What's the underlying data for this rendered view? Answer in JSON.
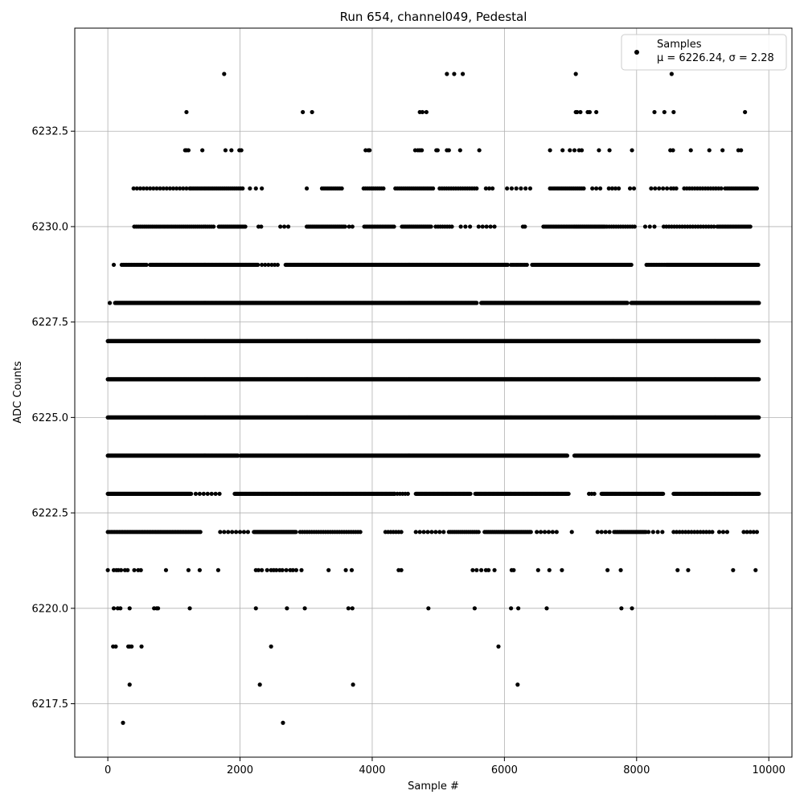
{
  "chart_data": {
    "type": "scatter",
    "title": "Run 654, channel049, Pedestal",
    "xlabel": "Sample #",
    "ylabel": "ADC Counts",
    "xlim": [
      -500,
      10350
    ],
    "ylim": [
      6216.1,
      6235.2
    ],
    "x_ticks": [
      0,
      2000,
      4000,
      6000,
      8000,
      10000
    ],
    "x_tick_labels": [
      "0",
      "2000",
      "4000",
      "6000",
      "8000",
      "10000"
    ],
    "y_ticks": [
      6217.5,
      6220.0,
      6222.5,
      6225.0,
      6227.5,
      6230.0,
      6232.5
    ],
    "y_tick_labels": [
      "6217.5",
      "6220.0",
      "6222.5",
      "6225.0",
      "6227.5",
      "6230.0",
      "6232.5"
    ],
    "grid": true,
    "legend_position": "top-right",
    "marker_color": "#000000",
    "series": [
      {
        "name": "Samples",
        "annotation": "μ = 6226.24, σ = 2.28",
        "count": 9850,
        "mean": 6226.24,
        "std": 2.28,
        "levels": [
          {
            "y": 6234,
            "x": [
              1760,
              5130,
              5240,
              5370,
              7080,
              8530
            ]
          },
          {
            "y": 6233,
            "x": [
              1190,
              2950,
              3090,
              4720,
              4760,
              4820,
              7080,
              7100,
              7150,
              7260,
              7290,
              7390,
              8270,
              8420,
              8560,
              9640
            ]
          },
          {
            "y": 6232,
            "x": [
              1170,
              1190,
              1220,
              1430,
              1780,
              1870,
              1990,
              2020,
              3900,
              3940,
              3960,
              4650,
              4690,
              4720,
              4750,
              4970,
              4990,
              5130,
              5160,
              5330,
              5620,
              6690,
              6880,
              6990,
              7060,
              7130,
              7170,
              7430,
              7590,
              7930,
              8510,
              8550,
              8820,
              9100,
              9300,
              9540,
              9580
            ]
          },
          {
            "y": 6231,
            "segments": [
              [
                390,
                1250,
                50
              ],
              [
                1260,
                2060,
                30
              ],
              [
                2150,
                2330,
                90
              ],
              [
                3010,
                3010,
                1
              ],
              [
                3240,
                3540,
                30
              ],
              [
                3870,
                4170,
                30
              ],
              [
                4350,
                4920,
                30
              ],
              [
                5020,
                5580,
                35
              ],
              [
                5720,
                5820,
                50
              ],
              [
                6040,
                6440,
                70
              ],
              [
                6690,
                7220,
                30
              ],
              [
                7330,
                7460,
                60
              ],
              [
                7580,
                7730,
                50
              ],
              [
                7900,
                7960,
                60
              ],
              [
                8220,
                8500,
                60
              ],
              [
                8520,
                8600,
                40
              ],
              [
                8720,
                9280,
                40
              ],
              [
                9340,
                9820,
                30
              ]
            ]
          },
          {
            "y": 6230,
            "segments": [
              [
                400,
                1620,
                30
              ],
              [
                1680,
                2080,
                20
              ],
              [
                2280,
                2350,
                40
              ],
              [
                2610,
                2780,
                60
              ],
              [
                3010,
                3600,
                20
              ],
              [
                3650,
                3740,
                50
              ],
              [
                3880,
                4350,
                25
              ],
              [
                4450,
                4900,
                20
              ],
              [
                4960,
                5230,
                35
              ],
              [
                5340,
                5530,
                70
              ],
              [
                5610,
                5890,
                60
              ],
              [
                6280,
                6310,
                30
              ],
              [
                6590,
                7060,
                25
              ],
              [
                7060,
                7520,
                20
              ],
              [
                7550,
                7980,
                35
              ],
              [
                8130,
                8280,
                70
              ],
              [
                8410,
                9170,
                40
              ],
              [
                9220,
                9730,
                25
              ]
            ]
          },
          {
            "y": 6229,
            "segments": [
              [
                90,
                90,
                1
              ],
              [
                210,
                600,
                25
              ],
              [
                640,
                2270,
                10
              ],
              [
                2330,
                2470,
                50
              ],
              [
                2480,
                2570,
                45
              ],
              [
                2690,
                6050,
                10
              ],
              [
                6100,
                6360,
                30
              ],
              [
                6420,
                7920,
                12
              ],
              [
                8150,
                8450,
                25
              ],
              [
                8460,
                9840,
                12
              ]
            ]
          },
          {
            "y": 6228,
            "segments": [
              [
                30,
                30,
                1
              ],
              [
                110,
                5580,
                10
              ],
              [
                5650,
                7860,
                10
              ],
              [
                7920,
                9850,
                10
              ]
            ]
          },
          {
            "y": 6227,
            "segments": [
              [
                0,
                9850,
                8
              ]
            ]
          },
          {
            "y": 6226,
            "segments": [
              [
                0,
                9850,
                8
              ]
            ]
          },
          {
            "y": 6225,
            "segments": [
              [
                0,
                9850,
                8
              ]
            ]
          },
          {
            "y": 6224,
            "segments": [
              [
                0,
                1970,
                10
              ],
              [
                2010,
                6950,
                10
              ],
              [
                7060,
                9850,
                12
              ]
            ]
          },
          {
            "y": 6223,
            "segments": [
              [
                0,
                1260,
                12
              ],
              [
                1330,
                1690,
                60
              ],
              [
                1920,
                4340,
                15
              ],
              [
                4340,
                4560,
                40
              ],
              [
                4660,
                5490,
                15
              ],
              [
                5560,
                6980,
                15
              ],
              [
                7280,
                7380,
                40
              ],
              [
                7470,
                8400,
                15
              ],
              [
                8560,
                9850,
                15
              ]
            ]
          },
          {
            "y": 6222,
            "segments": [
              [
                0,
                1420,
                25
              ],
              [
                1700,
                2170,
                60
              ],
              [
                2210,
                2850,
                12
              ],
              [
                2910,
                3840,
                35
              ],
              [
                4200,
                4450,
                40
              ],
              [
                4660,
                5100,
                60
              ],
              [
                5160,
                5610,
                30
              ],
              [
                5700,
                6410,
                20
              ],
              [
                6490,
                6840,
                60
              ],
              [
                7020,
                7020,
                1
              ],
              [
                7410,
                7610,
                60
              ],
              [
                7660,
                8140,
                20
              ],
              [
                8180,
                8440,
                70
              ],
              [
                8560,
                9150,
                45
              ],
              [
                9250,
                9380,
                60
              ],
              [
                9620,
                9850,
                50
              ]
            ]
          },
          {
            "y": 6221,
            "x": [
              0,
              90,
              130,
              160,
              200,
              260,
              300,
              400,
              460,
              500,
              880,
              1220,
              1390,
              1670,
              2240,
              2280,
              2330,
              2410,
              2470,
              2510,
              2550,
              2600,
              2640,
              2700,
              2760,
              2800,
              2850,
              2930,
              3340,
              3600,
              3690,
              4400,
              4440,
              5520,
              5580,
              5650,
              5720,
              5760,
              5850,
              6110,
              6140,
              6510,
              6680,
              6870,
              7560,
              7760,
              8620,
              8780,
              9460,
              9800
            ]
          },
          {
            "y": 6220,
            "x": [
              90,
              150,
              190,
              330,
              700,
              740,
              760,
              1240,
              2240,
              2710,
              2980,
              3640,
              3700,
              4850,
              5550,
              6100,
              6210,
              6640,
              7770,
              7930
            ]
          },
          {
            "y": 6219,
            "x": [
              80,
              120,
              310,
              330,
              360,
              510,
              2470,
              5910
            ]
          },
          {
            "y": 6218,
            "x": [
              330,
              2300,
              3710,
              6200
            ]
          },
          {
            "y": 6217,
            "x": [
              230,
              2650
            ]
          }
        ]
      }
    ]
  }
}
